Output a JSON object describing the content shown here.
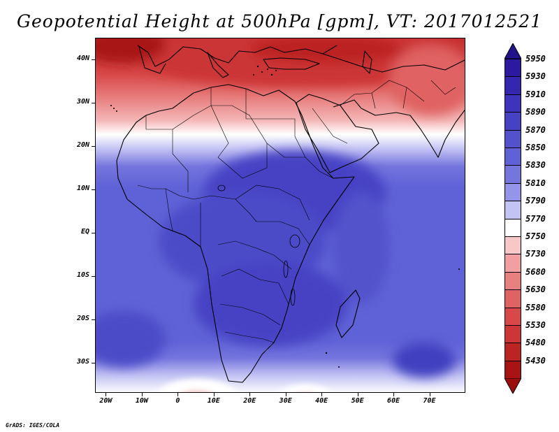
{
  "title": "Geopotential Height at 500hPa [gpm], VT: 2017012521",
  "credit": "GrADS: IGES/COLA",
  "map": {
    "field": "Geopotential Height at 500hPa",
    "units": "gpm",
    "lon_range": [
      -23,
      80
    ],
    "lat_range": [
      -37,
      45
    ],
    "y_axis": [
      {
        "label": "40N",
        "lat": 40
      },
      {
        "label": "30N",
        "lat": 30
      },
      {
        "label": "20N",
        "lat": 20
      },
      {
        "label": "10N",
        "lat": 10
      },
      {
        "label": "EQ",
        "lat": 0
      },
      {
        "label": "10S",
        "lat": -10
      },
      {
        "label": "20S",
        "lat": -20
      },
      {
        "label": "30S",
        "lat": -30
      }
    ],
    "x_axis": [
      {
        "label": "20W",
        "lon": -20
      },
      {
        "label": "10W",
        "lon": -10
      },
      {
        "label": "0",
        "lon": 0
      },
      {
        "label": "10E",
        "lon": 10
      },
      {
        "label": "20E",
        "lon": 20
      },
      {
        "label": "30E",
        "lon": 30
      },
      {
        "label": "40E",
        "lon": 40
      },
      {
        "label": "50E",
        "lon": 50
      },
      {
        "label": "60E",
        "lon": 60
      },
      {
        "label": "70E",
        "lon": 70
      }
    ]
  },
  "colorbar": {
    "levels": [
      "5950",
      "5930",
      "5910",
      "5890",
      "5870",
      "5850",
      "5830",
      "5810",
      "5790",
      "5770",
      "5750",
      "5730",
      "5680",
      "5630",
      "5580",
      "5530",
      "5480",
      "5430"
    ],
    "colors": [
      "#2a1aa0",
      "#3526b0",
      "#3d33bc",
      "#4642c4",
      "#5252cc",
      "#5f62d6",
      "#7575de",
      "#9494e8",
      "#c4c4f4",
      "#ffffff",
      "#f8c8c8",
      "#f0a0a0",
      "#e88080",
      "#e06262",
      "#d84848",
      "#cc3636",
      "#bc2424",
      "#a81414"
    ],
    "top_arrow_color": "#22128c",
    "bottom_arrow_color": "#9a0e0e"
  }
}
